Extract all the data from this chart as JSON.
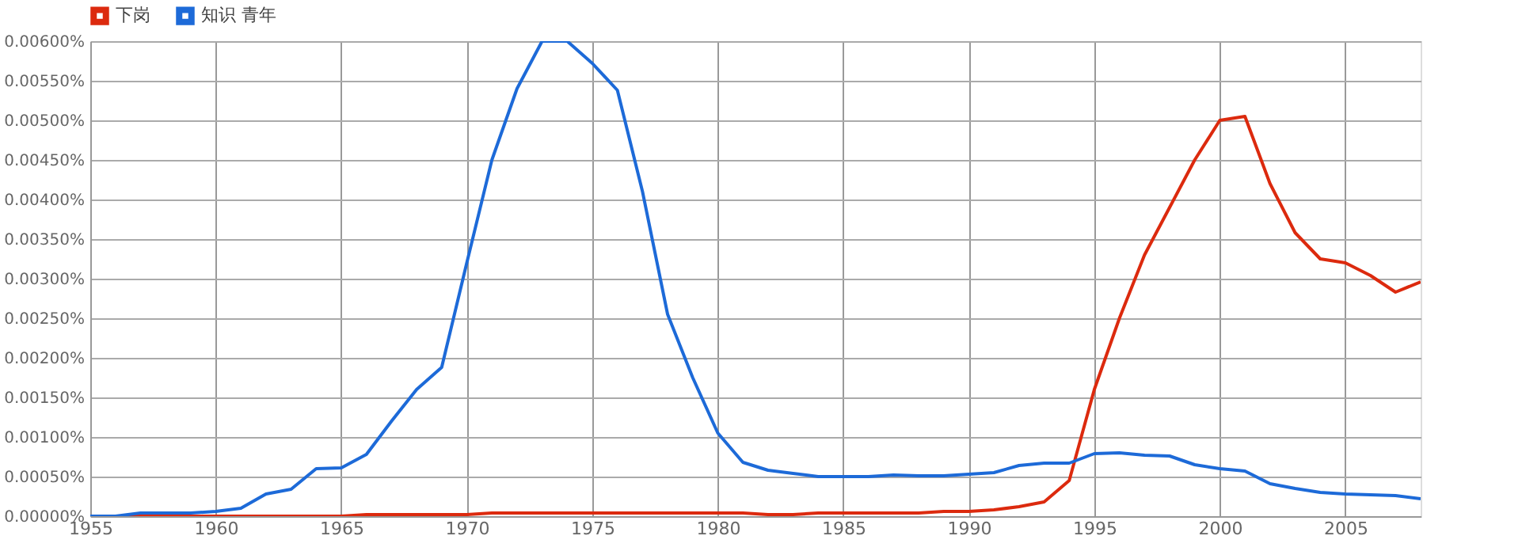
{
  "chart_data": {
    "type": "line",
    "x": [
      1955,
      1956,
      1957,
      1958,
      1959,
      1960,
      1961,
      1962,
      1963,
      1964,
      1965,
      1966,
      1967,
      1968,
      1969,
      1970,
      1971,
      1972,
      1973,
      1974,
      1975,
      1976,
      1977,
      1978,
      1979,
      1980,
      1981,
      1982,
      1983,
      1984,
      1985,
      1986,
      1987,
      1988,
      1989,
      1990,
      1991,
      1992,
      1993,
      1994,
      1995,
      1996,
      1997,
      1998,
      1999,
      2000,
      2001,
      2002,
      2003,
      2004,
      2005,
      2006,
      2007,
      2008
    ],
    "series": [
      {
        "name": "下岗",
        "color": "#dc2a0e",
        "values": [
          0,
          0,
          0,
          0,
          0,
          0,
          0,
          0,
          0,
          0,
          0,
          2e-05,
          2e-05,
          2e-05,
          2e-05,
          2e-05,
          4e-05,
          4e-05,
          4e-05,
          4e-05,
          4e-05,
          4e-05,
          4e-05,
          4e-05,
          4e-05,
          4e-05,
          4e-05,
          2e-05,
          2e-05,
          4e-05,
          4e-05,
          4e-05,
          4e-05,
          4e-05,
          6e-05,
          6e-05,
          8e-05,
          0.00012,
          0.00018,
          0.00045,
          0.0016,
          0.0025,
          0.0033,
          0.0039,
          0.0045,
          0.005,
          0.00505,
          0.0042,
          0.00358,
          0.00325,
          0.0032,
          0.00304,
          0.00283,
          0.00296
        ]
      },
      {
        "name": "知识 青年",
        "color": "#1d6ad8",
        "values": [
          0,
          0,
          4e-05,
          4e-05,
          4e-05,
          6e-05,
          0.0001,
          0.00028,
          0.00034,
          0.0006,
          0.00061,
          0.00078,
          0.0012,
          0.0016,
          0.00188,
          0.0032,
          0.0045,
          0.0054,
          0.006,
          0.006,
          0.00572,
          0.00538,
          0.0041,
          0.00255,
          0.00175,
          0.00105,
          0.00068,
          0.00058,
          0.00054,
          0.0005,
          0.0005,
          0.0005,
          0.00052,
          0.00051,
          0.00051,
          0.00053,
          0.00055,
          0.00064,
          0.00067,
          0.00067,
          0.00079,
          0.0008,
          0.00077,
          0.00076,
          0.00065,
          0.0006,
          0.00057,
          0.00041,
          0.00035,
          0.0003,
          0.00028,
          0.00027,
          0.00026,
          0.00022
        ]
      }
    ],
    "xlim": [
      1955,
      2008
    ],
    "xticks": [
      1955,
      1960,
      1965,
      1970,
      1975,
      1980,
      1985,
      1990,
      1995,
      2000,
      2005
    ],
    "ylim": [
      0,
      0.006
    ],
    "yticks": [
      {
        "value": 0,
        "label": "0.00000%"
      },
      {
        "value": 0.0005,
        "label": "0.00050%"
      },
      {
        "value": 0.001,
        "label": "0.00100%"
      },
      {
        "value": 0.0015,
        "label": "0.00150%"
      },
      {
        "value": 0.002,
        "label": "0.00200%"
      },
      {
        "value": 0.0025,
        "label": "0.00250%"
      },
      {
        "value": 0.003,
        "label": "0.00300%"
      },
      {
        "value": 0.0035,
        "label": "0.00350%"
      },
      {
        "value": 0.004,
        "label": "0.00400%"
      },
      {
        "value": 0.0045,
        "label": "0.00450%"
      },
      {
        "value": 0.005,
        "label": "0.00500%"
      },
      {
        "value": 0.0055,
        "label": "0.00550%"
      },
      {
        "value": 0.006,
        "label": "0.00600%"
      }
    ],
    "grid": true,
    "legend": "top",
    "marker": "none",
    "line_style": "solid"
  }
}
